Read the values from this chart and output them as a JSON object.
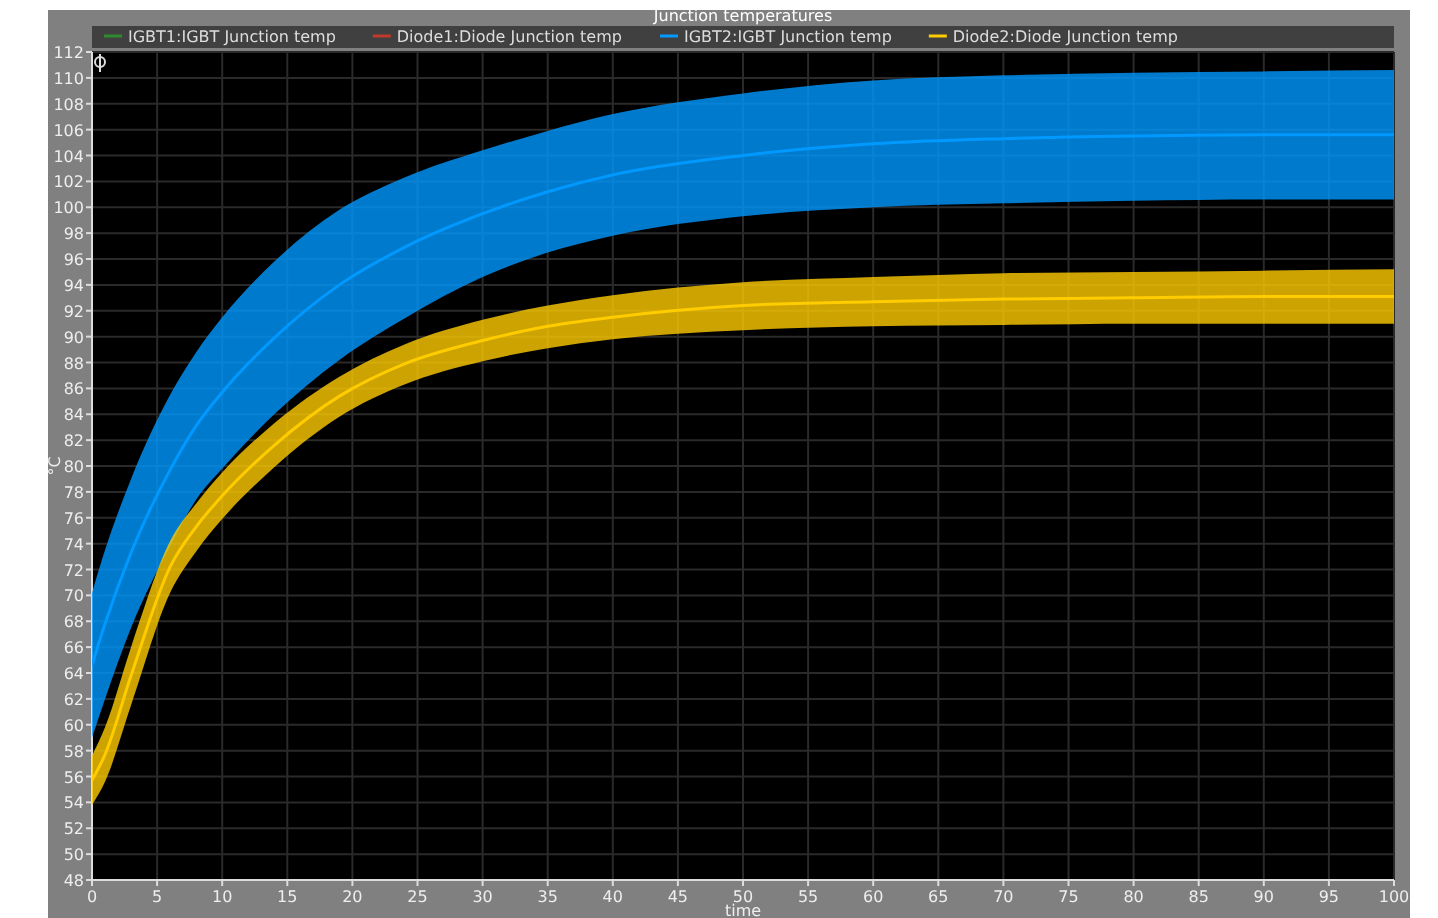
{
  "chart_data": {
    "type": "line",
    "title": "Junction temperatures",
    "xlabel": "time",
    "ylabel": "°C",
    "x": [
      0,
      1,
      3,
      6,
      8,
      10,
      14,
      19,
      24,
      30,
      35,
      40,
      50,
      60,
      70,
      80,
      90,
      100
    ],
    "series": [
      {
        "name": "IGBT1:IGBT Junction temp",
        "color": "#2e8b2e",
        "values": [
          null,
          null,
          null,
          null,
          null,
          null,
          null,
          null,
          null,
          null,
          null,
          null,
          null,
          null,
          null,
          null,
          null,
          null
        ]
      },
      {
        "name": "Diode1:Diode Junction temp",
        "color": "#c0392b",
        "values": [
          null,
          null,
          null,
          null,
          null,
          null,
          null,
          null,
          null,
          null,
          null,
          null,
          null,
          null,
          null,
          null,
          null,
          null
        ]
      },
      {
        "name": "IGBT2:IGBT Junction temp",
        "color": "#0099ff",
        "values": [
          64.6,
          67.8,
          73.3,
          79.7,
          83.1,
          85.7,
          89.9,
          94,
          96.9,
          99.5,
          101.2,
          102.5,
          104,
          104.9,
          105.3,
          105.5,
          105.6,
          105.6
        ],
        "lower": [
          59,
          62,
          67.5,
          73.8,
          77.4,
          79.8,
          84,
          88.2,
          91.4,
          94.6,
          96.5,
          97.8,
          99.3,
          100,
          100.3,
          100.5,
          100.6,
          100.6
        ],
        "upper": [
          70.2,
          73.5,
          79,
          85.5,
          88.8,
          91.5,
          95.8,
          99.8,
          102.3,
          104.4,
          105.9,
          107.2,
          108.8,
          109.8,
          110.2,
          110.4,
          110.5,
          110.6
        ]
      },
      {
        "name": "Diode2:Diode Junction temp",
        "color": "#ffcc00",
        "values": [
          55.7,
          57.7,
          63.8,
          72.2,
          75.3,
          77.7,
          81.6,
          85.4,
          87.9,
          89.7,
          90.8,
          91.5,
          92.4,
          92.7,
          92.9,
          93,
          93.1,
          93.1
        ],
        "lower": [
          53.8,
          55.6,
          61.5,
          70.2,
          73.4,
          75.9,
          79.9,
          83.8,
          86.3,
          88.1,
          89.1,
          89.8,
          90.5,
          90.8,
          90.9,
          91,
          91,
          91
        ],
        "upper": [
          57.6,
          59.8,
          66,
          74.2,
          77.1,
          79.5,
          83.3,
          86.9,
          89.4,
          91.3,
          92.4,
          93.2,
          94.2,
          94.6,
          94.9,
          95,
          95.1,
          95.2
        ]
      }
    ],
    "xlim": [
      0,
      100
    ],
    "xticks": [
      0,
      5,
      10,
      15,
      20,
      25,
      30,
      35,
      40,
      45,
      50,
      55,
      60,
      65,
      70,
      75,
      80,
      85,
      90,
      95,
      100
    ],
    "ylim": [
      48,
      112
    ],
    "yticks": [
      48,
      50,
      52,
      54,
      56,
      58,
      60,
      62,
      64,
      66,
      68,
      70,
      72,
      74,
      76,
      78,
      80,
      82,
      84,
      86,
      88,
      90,
      92,
      94,
      96,
      98,
      100,
      102,
      104,
      106,
      108,
      110,
      112
    ],
    "grid": true,
    "legend": "top"
  }
}
